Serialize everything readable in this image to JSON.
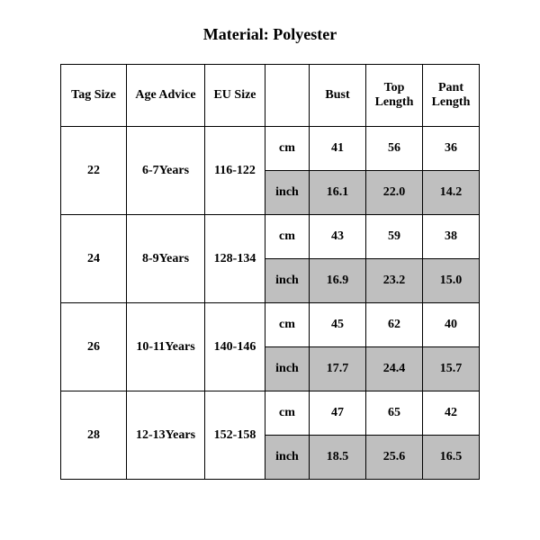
{
  "title": "Material: Polyester",
  "table": {
    "headers": {
      "tag_size": "Tag Size",
      "age_advice": "Age Advice",
      "eu_size": "EU Size",
      "unit": "",
      "bust": "Bust",
      "top_length": "Top Length",
      "pant_length": "Pant Length"
    },
    "units": {
      "cm": "cm",
      "inch": "inch"
    },
    "rows": [
      {
        "tag_size": "22",
        "age_advice": "6-7Years",
        "eu_size": "116-122",
        "cm": {
          "bust": "41",
          "top_length": "56",
          "pant_length": "36"
        },
        "inch": {
          "bust": "16.1",
          "top_length": "22.0",
          "pant_length": "14.2"
        }
      },
      {
        "tag_size": "24",
        "age_advice": "8-9Years",
        "eu_size": "128-134",
        "cm": {
          "bust": "43",
          "top_length": "59",
          "pant_length": "38"
        },
        "inch": {
          "bust": "16.9",
          "top_length": "23.2",
          "pant_length": "15.0"
        }
      },
      {
        "tag_size": "26",
        "age_advice": "10-11Years",
        "eu_size": "140-146",
        "cm": {
          "bust": "45",
          "top_length": "62",
          "pant_length": "40"
        },
        "inch": {
          "bust": "17.7",
          "top_length": "24.4",
          "pant_length": "15.7"
        }
      },
      {
        "tag_size": "28",
        "age_advice": "12-13Years",
        "eu_size": "152-158",
        "cm": {
          "bust": "47",
          "top_length": "65",
          "pant_length": "42"
        },
        "inch": {
          "bust": "18.5",
          "top_length": "25.6",
          "pant_length": "16.5"
        }
      }
    ],
    "colors": {
      "background": "#ffffff",
      "border": "#000000",
      "shaded_cell": "#bfbfbf",
      "text": "#000000"
    },
    "fontsizes": {
      "title": 18,
      "cell": 14
    }
  }
}
